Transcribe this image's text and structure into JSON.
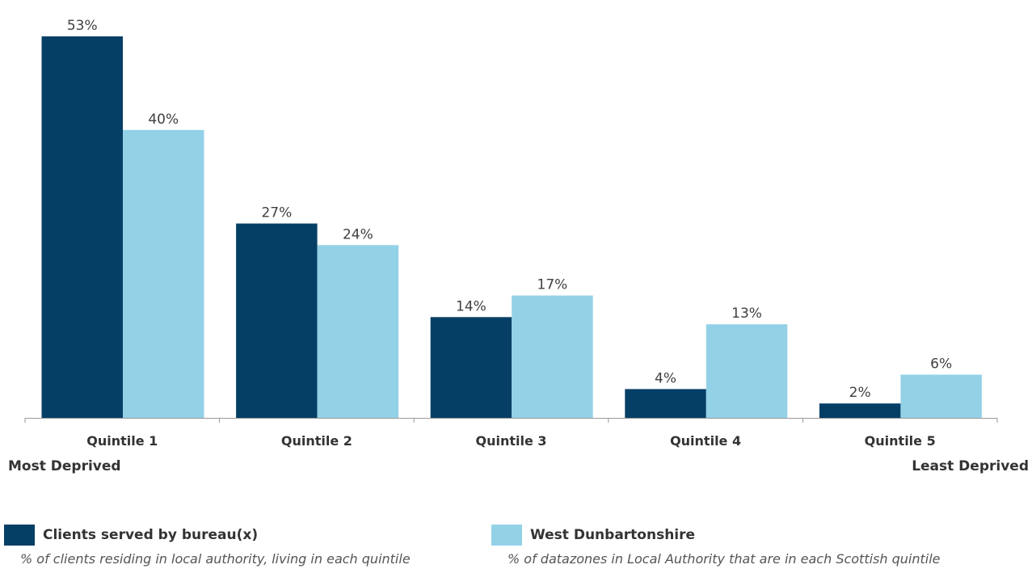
{
  "chart_data": {
    "type": "bar",
    "categories": [
      "Quintile 1",
      "Quintile 2",
      "Quintile 3",
      "Quintile 4",
      "Quintile 5"
    ],
    "series": [
      {
        "name": "Clients served by bureau(x)",
        "description": "% of clients residing in local authority, living in each quintile",
        "color": "#063f66",
        "values": [
          53,
          27,
          14,
          4,
          2
        ],
        "labels": [
          "53%",
          "27%",
          "14%",
          "4%",
          "2%"
        ]
      },
      {
        "name": "West Dunbartonshire",
        "description": "% of datazones in Local Authority that are in each Scottish quintile",
        "color": "#93d1e7",
        "values": [
          40,
          24,
          17,
          13,
          6
        ],
        "labels": [
          "40%",
          "24%",
          "17%",
          "13%",
          "6%"
        ]
      }
    ],
    "ylim": [
      0,
      53
    ],
    "unit": "%",
    "grid": false,
    "legend": "bottom",
    "axis_notes": {
      "left": "Most Deprived",
      "right": "Least Deprived"
    }
  }
}
